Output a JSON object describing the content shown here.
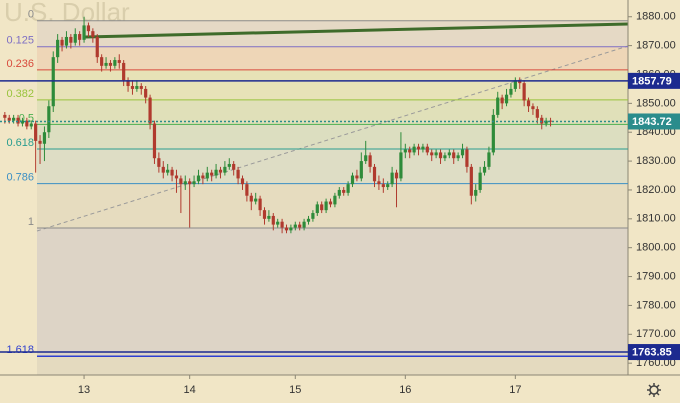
{
  "chart_data": {
    "type": "candlestick",
    "watermark": "U.S. Dollar",
    "up_color": "#2e8b3a",
    "down_color": "#b03a2e",
    "ylim": [
      1755.9,
      1885.8
    ],
    "yticks": [
      {
        "value": 1760,
        "label": "1760.00"
      },
      {
        "value": 1770,
        "label": "1770.00"
      },
      {
        "value": 1780,
        "label": "1780.00"
      },
      {
        "value": 1790,
        "label": "1790.00"
      },
      {
        "value": 1800,
        "label": "1800.00"
      },
      {
        "value": 1810,
        "label": "1810.00"
      },
      {
        "value": 1820,
        "label": "1820.00"
      },
      {
        "value": 1830,
        "label": "1830.00"
      },
      {
        "value": 1840,
        "label": "1840.00"
      },
      {
        "value": 1850,
        "label": "1850.00"
      },
      {
        "value": 1860,
        "label": "1860.00"
      },
      {
        "value": 1870,
        "label": "1870.00"
      },
      {
        "value": 1880,
        "label": "1880.00"
      }
    ],
    "xlim": [
      -1.1,
      141.6
    ],
    "xticks": [
      {
        "value": 18,
        "label": "13"
      },
      {
        "value": 42,
        "label": "14"
      },
      {
        "value": 66,
        "label": "15"
      },
      {
        "value": 91,
        "label": "16"
      },
      {
        "value": 116,
        "label": "17"
      }
    ],
    "fib_levels": [
      {
        "label": "0",
        "value": 1878.6,
        "color": "#8a8a8a"
      },
      {
        "label": "0.125",
        "value": 1869.6,
        "color": "#7e6fc4"
      },
      {
        "label": "0.236",
        "value": 1861.6,
        "color": "#d84a3c"
      },
      {
        "label": "0.382",
        "value": 1851.2,
        "color": "#98c33c"
      },
      {
        "label": "0.5",
        "value": 1842.7,
        "color": "#4caf50"
      },
      {
        "label": "0.618",
        "value": 1834.2,
        "color": "#2a9d8f"
      },
      {
        "label": "0.786",
        "value": 1822.2,
        "color": "#3b8fc4"
      },
      {
        "label": "1",
        "value": 1806.8,
        "color": "#8a8a8a"
      },
      {
        "label": "1.618",
        "value": 1762.4,
        "color": "#2f3fd0"
      }
    ],
    "price_lines": [
      {
        "value": 1857.79,
        "color": "#1c2a8f"
      },
      {
        "value": 1843.72,
        "color": "#2b8c8c"
      },
      {
        "value": 1763.85,
        "color": "#1c2a8f"
      }
    ],
    "candles": [
      [
        1846,
        1847,
        1843,
        1845
      ],
      [
        1845,
        1846,
        1843,
        1844
      ],
      [
        1844,
        1846,
        1843,
        1845
      ],
      [
        1845,
        1846,
        1842,
        1843
      ],
      [
        1843,
        1845,
        1842,
        1844
      ],
      [
        1844,
        1845,
        1841,
        1842
      ],
      [
        1842,
        1844,
        1841,
        1843
      ],
      [
        1843,
        1844,
        1826,
        1837
      ],
      [
        1837,
        1839,
        1829,
        1836
      ],
      [
        1836,
        1842,
        1830,
        1840
      ],
      [
        1840,
        1851,
        1838,
        1849
      ],
      [
        1849,
        1868,
        1847,
        1866
      ],
      [
        1866,
        1874,
        1864,
        1872
      ],
      [
        1872,
        1873,
        1868,
        1870
      ],
      [
        1870,
        1875,
        1869,
        1873
      ],
      [
        1873,
        1874,
        1869,
        1871
      ],
      [
        1871,
        1876,
        1870,
        1874
      ],
      [
        1874,
        1875,
        1870,
        1872
      ],
      [
        1872,
        1880,
        1871,
        1877
      ],
      [
        1877,
        1878,
        1873,
        1875
      ],
      [
        1875,
        1876,
        1871,
        1873
      ],
      [
        1873,
        1874,
        1864,
        1866
      ],
      [
        1866,
        1867,
        1861,
        1863
      ],
      [
        1863,
        1866,
        1862,
        1864
      ],
      [
        1864,
        1865,
        1861,
        1863
      ],
      [
        1863,
        1866,
        1862,
        1865
      ],
      [
        1865,
        1867,
        1862,
        1864
      ],
      [
        1864,
        1865,
        1856,
        1858
      ],
      [
        1858,
        1859,
        1854,
        1856
      ],
      [
        1856,
        1858,
        1853,
        1855
      ],
      [
        1855,
        1858,
        1854,
        1856
      ],
      [
        1856,
        1857,
        1853,
        1855
      ],
      [
        1855,
        1856,
        1850,
        1852
      ],
      [
        1852,
        1853,
        1841,
        1843
      ],
      [
        1843,
        1844,
        1829,
        1831
      ],
      [
        1831,
        1833,
        1826,
        1828
      ],
      [
        1828,
        1830,
        1824,
        1826
      ],
      [
        1826,
        1829,
        1825,
        1827
      ],
      [
        1827,
        1828,
        1823,
        1825
      ],
      [
        1825,
        1827,
        1819,
        1824
      ],
      [
        1824,
        1825,
        1812,
        1822
      ],
      [
        1822,
        1825,
        1820,
        1823
      ],
      [
        1823,
        1824,
        1807,
        1822
      ],
      [
        1822,
        1825,
        1821,
        1823
      ],
      [
        1823,
        1827,
        1822,
        1825
      ],
      [
        1825,
        1826,
        1822,
        1824
      ],
      [
        1824,
        1828,
        1823,
        1826
      ],
      [
        1826,
        1827,
        1823,
        1825
      ],
      [
        1825,
        1829,
        1824,
        1827
      ],
      [
        1827,
        1828,
        1824,
        1826
      ],
      [
        1826,
        1830,
        1825,
        1828
      ],
      [
        1828,
        1831,
        1827,
        1829
      ],
      [
        1829,
        1830,
        1825,
        1827
      ],
      [
        1827,
        1828,
        1822,
        1824
      ],
      [
        1824,
        1825,
        1820,
        1822
      ],
      [
        1822,
        1823,
        1816,
        1818
      ],
      [
        1818,
        1819,
        1813,
        1816
      ],
      [
        1816,
        1819,
        1815,
        1817
      ],
      [
        1817,
        1818,
        1811,
        1813
      ],
      [
        1813,
        1814,
        1808,
        1810
      ],
      [
        1810,
        1813,
        1809,
        1811
      ],
      [
        1811,
        1812,
        1806,
        1808
      ],
      [
        1808,
        1810,
        1807,
        1809
      ],
      [
        1809,
        1810,
        1805,
        1807
      ],
      [
        1807,
        1808,
        1805,
        1806
      ],
      [
        1806,
        1808,
        1805,
        1807
      ],
      [
        1807,
        1809,
        1806,
        1808
      ],
      [
        1808,
        1809,
        1806,
        1807
      ],
      [
        1807,
        1810,
        1806,
        1809
      ],
      [
        1809,
        1811,
        1808,
        1810
      ],
      [
        1810,
        1813,
        1809,
        1812
      ],
      [
        1812,
        1816,
        1811,
        1815
      ],
      [
        1815,
        1816,
        1812,
        1813
      ],
      [
        1813,
        1817,
        1812,
        1816
      ],
      [
        1816,
        1817,
        1814,
        1815
      ],
      [
        1815,
        1819,
        1814,
        1818
      ],
      [
        1818,
        1821,
        1817,
        1820
      ],
      [
        1820,
        1821,
        1818,
        1819
      ],
      [
        1819,
        1823,
        1818,
        1822
      ],
      [
        1822,
        1826,
        1821,
        1825
      ],
      [
        1825,
        1827,
        1823,
        1824
      ],
      [
        1824,
        1833,
        1823,
        1830
      ],
      [
        1830,
        1837,
        1829,
        1832
      ],
      [
        1832,
        1833,
        1826,
        1828
      ],
      [
        1828,
        1829,
        1821,
        1823
      ],
      [
        1823,
        1825,
        1820,
        1822
      ],
      [
        1822,
        1824,
        1819,
        1821
      ],
      [
        1821,
        1823,
        1820,
        1822
      ],
      [
        1822,
        1828,
        1821,
        1826
      ],
      [
        1826,
        1827,
        1814,
        1824
      ],
      [
        1824,
        1840,
        1823,
        1833
      ],
      [
        1833,
        1836,
        1831,
        1834
      ],
      [
        1834,
        1835,
        1831,
        1833
      ],
      [
        1833,
        1836,
        1832,
        1835
      ],
      [
        1835,
        1836,
        1832,
        1834
      ],
      [
        1834,
        1836,
        1833,
        1835
      ],
      [
        1835,
        1836,
        1832,
        1833
      ],
      [
        1833,
        1834,
        1830,
        1832
      ],
      [
        1832,
        1834,
        1831,
        1833
      ],
      [
        1833,
        1834,
        1829,
        1831
      ],
      [
        1831,
        1833,
        1830,
        1832
      ],
      [
        1832,
        1834,
        1831,
        1833
      ],
      [
        1833,
        1834,
        1829,
        1831
      ],
      [
        1831,
        1833,
        1830,
        1832
      ],
      [
        1832,
        1836,
        1831,
        1834
      ],
      [
        1834,
        1835,
        1826,
        1828
      ],
      [
        1828,
        1829,
        1815,
        1818
      ],
      [
        1818,
        1822,
        1816,
        1820
      ],
      [
        1820,
        1828,
        1819,
        1826
      ],
      [
        1826,
        1830,
        1825,
        1828
      ],
      [
        1828,
        1835,
        1827,
        1833
      ],
      [
        1833,
        1848,
        1832,
        1846
      ],
      [
        1846,
        1854,
        1845,
        1852
      ],
      [
        1852,
        1853,
        1848,
        1850
      ],
      [
        1850,
        1855,
        1849,
        1853
      ],
      [
        1853,
        1857,
        1852,
        1855
      ],
      [
        1855,
        1859,
        1854,
        1858
      ],
      [
        1858,
        1859,
        1855,
        1857
      ],
      [
        1857,
        1858,
        1849,
        1851
      ],
      [
        1851,
        1852,
        1847,
        1849
      ],
      [
        1849,
        1850,
        1846,
        1848
      ],
      [
        1848,
        1849,
        1843,
        1845
      ],
      [
        1845,
        1846,
        1841,
        1843
      ],
      [
        1843,
        1845,
        1842,
        1844
      ],
      [
        1844,
        1845,
        1842,
        1843.72
      ]
    ]
  }
}
